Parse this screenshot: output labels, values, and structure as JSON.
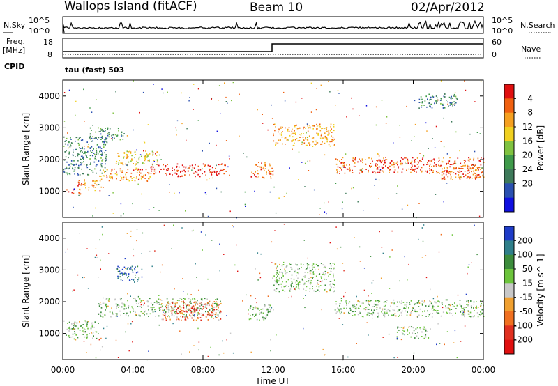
{
  "header": {
    "left": "Wallops Island (fitACF)",
    "center": "Beam 10",
    "right": "02/Apr/2012"
  },
  "panels": {
    "nsky": {
      "label": "N.Sky",
      "tick_top": "10^5",
      "tick_bottom": "10^0"
    },
    "nsearch": {
      "label": "N.Search",
      "tick_top": "10^5",
      "tick_bottom": "10^0"
    },
    "freq": {
      "label_1": "Freq.",
      "label_2": "[MHz]",
      "tick_top": "18",
      "tick_bottom": "8"
    },
    "nave": {
      "label": "Nave",
      "tick_top": "60",
      "tick_bottom": "0"
    },
    "cpid": {
      "label": "CPID",
      "value": "tau (fast) 503"
    }
  },
  "chart_data": [
    {
      "type": "heatmap",
      "name": "power",
      "ylabel": "Slant Range [km]",
      "xlabel": "Time UT",
      "x_ticks": [
        "00:00",
        "04:00",
        "08:00",
        "12:00",
        "16:00",
        "20:00",
        "00:00"
      ],
      "y_ticks": [
        "1000",
        "2000",
        "3000",
        "4000"
      ],
      "xlim_hours": [
        0,
        24
      ],
      "ylim_km": [
        180,
        4500
      ],
      "colorbar": {
        "label": "Power [dB]",
        "ticks": [
          "4",
          "8",
          "12",
          "16",
          "20",
          "24",
          "28"
        ],
        "colors": [
          "#1010e0",
          "#2a50b0",
          "#3e7a5a",
          "#3f9a4a",
          "#7fc240",
          "#f0d020",
          "#f5a020",
          "#f06010",
          "#e01010"
        ]
      },
      "bands": [
        {
          "t0": 0.0,
          "t1": 1.0,
          "r0": 880,
          "r1": 1050,
          "level": 0.92
        },
        {
          "t0": 0.8,
          "t1": 2.2,
          "r0": 1000,
          "r1": 1350,
          "level": 0.8
        },
        {
          "t0": 2.0,
          "t1": 5.0,
          "r0": 1300,
          "r1": 1700,
          "level": 0.75
        },
        {
          "t0": 5.0,
          "t1": 9.3,
          "r0": 1450,
          "r1": 1850,
          "level": 0.95
        },
        {
          "t0": 3.0,
          "t1": 5.5,
          "r0": 1800,
          "r1": 2250,
          "level": 0.62
        },
        {
          "t0": 10.7,
          "t1": 12.0,
          "r0": 1400,
          "r1": 1900,
          "level": 0.8
        },
        {
          "t0": 12.0,
          "t1": 15.5,
          "r0": 2400,
          "r1": 3100,
          "level": 0.72
        },
        {
          "t0": 15.5,
          "t1": 24.0,
          "r0": 1550,
          "r1": 2050,
          "level": 0.86
        },
        {
          "t0": 21.5,
          "t1": 24.0,
          "r0": 1350,
          "r1": 1750,
          "level": 0.82
        },
        {
          "t0": 20.0,
          "t1": 22.5,
          "r0": 3600,
          "r1": 4050,
          "level": 0.28
        },
        {
          "t0": 0.0,
          "t1": 2.5,
          "r0": 1500,
          "r1": 2700,
          "level": 0.3
        },
        {
          "t0": 1.5,
          "t1": 3.5,
          "r0": 2600,
          "r1": 3000,
          "level": 0.36
        }
      ]
    },
    {
      "type": "heatmap",
      "name": "velocity",
      "ylabel": "Slant Range [km]",
      "xlabel": "Time UT",
      "x_ticks": [
        "00:00",
        "04:00",
        "08:00",
        "12:00",
        "16:00",
        "20:00",
        "00:00"
      ],
      "y_ticks": [
        "1000",
        "2000",
        "3000",
        "4000"
      ],
      "xlim_hours": [
        0,
        24
      ],
      "ylim_km": [
        180,
        4500
      ],
      "colorbar": {
        "label": "Velocity [m s^-1]",
        "ticks": [
          "200",
          "100",
          "50",
          "15",
          "-15",
          "-50",
          "-100",
          "-200"
        ],
        "colors": [
          "#1e3cc8",
          "#2f7f8a",
          "#3c8c3c",
          "#6cc43c",
          "#c8c8c8",
          "#f0a030",
          "#f07020",
          "#e03020",
          "#e01010"
        ]
      },
      "bands": [
        {
          "t0": 0.0,
          "t1": 2.0,
          "r0": 800,
          "r1": 1400,
          "level": 0.4
        },
        {
          "t0": 2.0,
          "t1": 9.0,
          "r0": 1500,
          "r1": 2100,
          "level": 0.4
        },
        {
          "t0": 5.5,
          "t1": 9.0,
          "r0": 1400,
          "r1": 2000,
          "level": 0.72
        },
        {
          "t0": 6.5,
          "t1": 7.8,
          "r0": 1600,
          "r1": 1800,
          "level": 0.92
        },
        {
          "t0": 10.5,
          "t1": 12.0,
          "r0": 1400,
          "r1": 1900,
          "level": 0.4
        },
        {
          "t0": 12.0,
          "t1": 15.5,
          "r0": 2300,
          "r1": 3200,
          "level": 0.4
        },
        {
          "t0": 15.5,
          "t1": 24.0,
          "r0": 1500,
          "r1": 2050,
          "level": 0.4
        },
        {
          "t0": 19.0,
          "t1": 21.0,
          "r0": 800,
          "r1": 1200,
          "level": 0.4
        },
        {
          "t0": 3.0,
          "t1": 4.5,
          "r0": 2600,
          "r1": 3100,
          "level": 0.15
        }
      ]
    }
  ]
}
